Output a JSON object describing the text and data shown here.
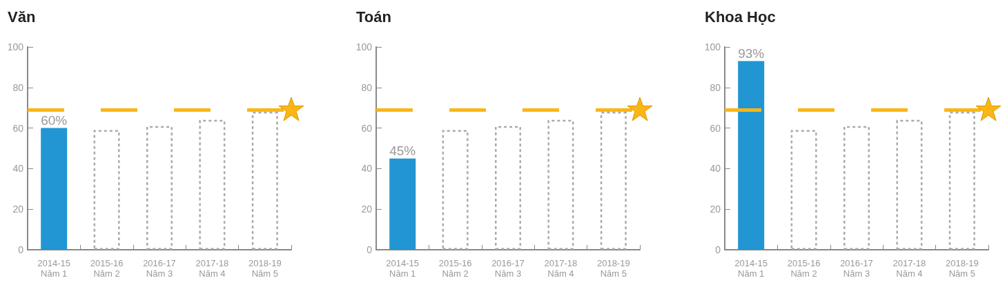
{
  "chart_data": [
    {
      "type": "bar",
      "title": "Văn",
      "categories": [
        "2014-15\nNăm 1",
        "2015-16\nNăm 2",
        "2016-17\nNăm 3",
        "2017-18\nNăm 4",
        "2018-19\nNăm 5"
      ],
      "ylim": [
        0,
        100
      ],
      "yticks": [
        0,
        20,
        40,
        60,
        80,
        100
      ],
      "grid": false,
      "series": [
        {
          "color": "#2196d3",
          "values": [
            60,
            null,
            null,
            null,
            null
          ],
          "value_labels": [
            "60%",
            null,
            null,
            null,
            null
          ]
        },
        {
          "color": "#aaaaaa",
          "line_style": "dotted",
          "values": [
            null,
            59,
            61,
            64,
            68
          ]
        }
      ],
      "ref_lines": [
        {
          "axis": "y",
          "value": 69,
          "color": "#fbb615",
          "line_style": "dashed"
        }
      ]
    },
    {
      "type": "bar",
      "title": "Toán",
      "categories": [
        "2014-15\nNăm 1",
        "2015-16\nNăm 2",
        "2016-17\nNăm 3",
        "2017-18\nNăm 4",
        "2018-19\nNăm 5"
      ],
      "ylim": [
        0,
        100
      ],
      "yticks": [
        0,
        20,
        40,
        60,
        80,
        100
      ],
      "grid": false,
      "series": [
        {
          "color": "#2196d3",
          "values": [
            45,
            null,
            null,
            null,
            null
          ],
          "value_labels": [
            "45%",
            null,
            null,
            null,
            null
          ]
        },
        {
          "color": "#aaaaaa",
          "line_style": "dotted",
          "values": [
            null,
            59,
            61,
            64,
            68
          ]
        }
      ],
      "ref_lines": [
        {
          "axis": "y",
          "value": 69,
          "color": "#fbb615",
          "line_style": "dashed"
        }
      ]
    },
    {
      "type": "bar",
      "title": "Khoa Học",
      "categories": [
        "2014-15\nNăm 1",
        "2015-16\nNăm 2",
        "2016-17\nNăm 3",
        "2017-18\nNăm 4",
        "2018-19\nNăm 5"
      ],
      "ylim": [
        0,
        100
      ],
      "yticks": [
        0,
        20,
        40,
        60,
        80,
        100
      ],
      "grid": false,
      "series": [
        {
          "color": "#2196d3",
          "values": [
            93,
            null,
            null,
            null,
            null
          ],
          "value_labels": [
            "93%",
            null,
            null,
            null,
            null
          ]
        },
        {
          "color": "#aaaaaa",
          "line_style": "dotted",
          "values": [
            null,
            59,
            61,
            64,
            68
          ]
        }
      ],
      "ref_lines": [
        {
          "axis": "y",
          "value": 69,
          "color": "#fbb615",
          "line_style": "dashed"
        }
      ]
    }
  ]
}
